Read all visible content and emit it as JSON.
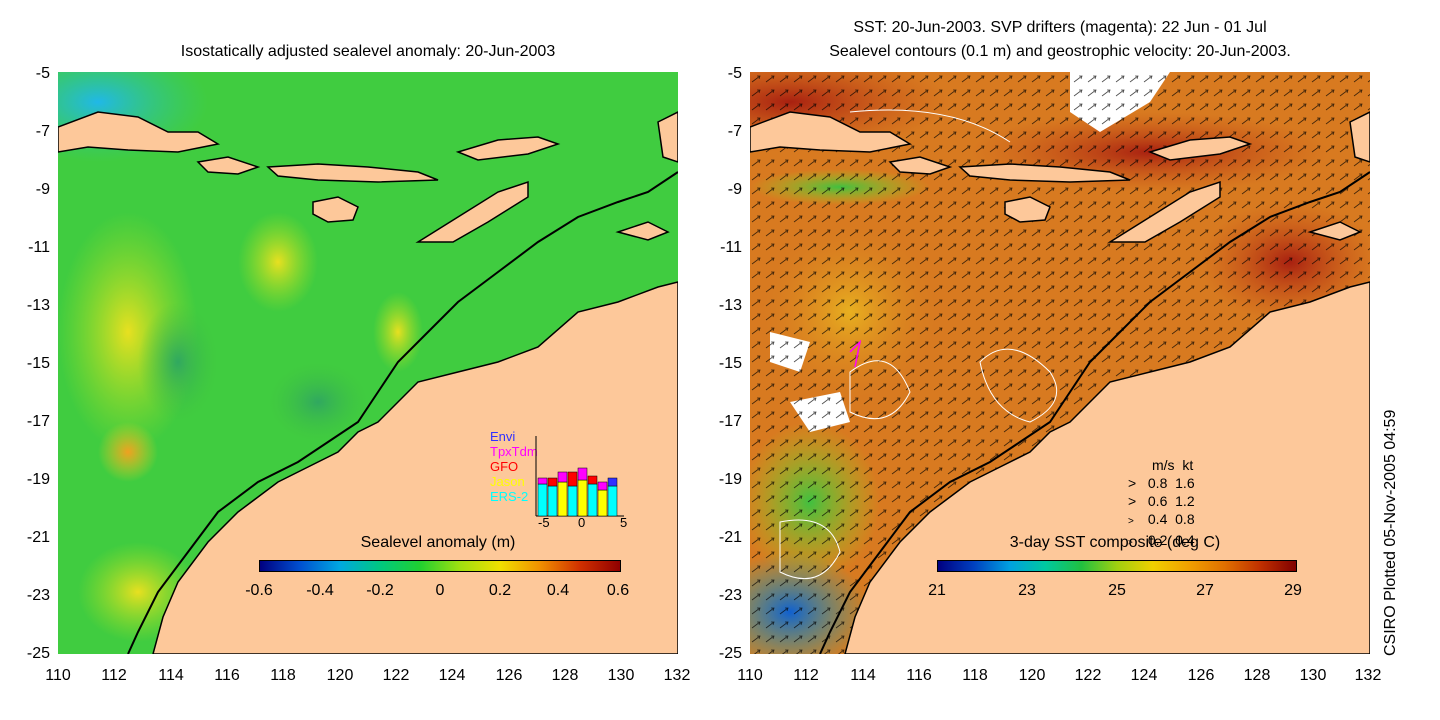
{
  "left_panel": {
    "title": "Isostatically adjusted sealevel anomaly: 20-Jun-2003",
    "colorbar_title": "Sealevel anomaly (m)",
    "colorbar_ticks": [
      "-0.6",
      "-0.4",
      "-0.2",
      "0",
      "0.2",
      "0.4",
      "0.6"
    ],
    "colorbar_colors": [
      "#000080",
      "#0050d0",
      "#00a8e0",
      "#00c880",
      "#20d030",
      "#a0e010",
      "#f0e000",
      "#f09000",
      "#d03000",
      "#900000"
    ],
    "satellite_legend": [
      {
        "label": "Envi",
        "color": "#3030ff"
      },
      {
        "label": "TpxTdm",
        "color": "#ff00ff"
      },
      {
        "label": "GFO",
        "color": "#ff0000"
      },
      {
        "label": "Jason",
        "color": "#ffff00"
      },
      {
        "label": "ERS-2",
        "color": "#00ffff"
      }
    ],
    "mini_axis_ticks": [
      "-5",
      "0",
      "5"
    ]
  },
  "right_panel": {
    "title_line1": "SST: 20-Jun-2003. SVP drifters (magenta): 22 Jun - 01 Jul",
    "title_line2": "Sealevel contours (0.1 m) and geostrophic velocity: 20-Jun-2003.",
    "colorbar_title": "3-day SST composite (deg C)",
    "colorbar_ticks": [
      "21",
      "23",
      "25",
      "27",
      "29"
    ],
    "colorbar_colors": [
      "#000080",
      "#0040c0",
      "#00a0e0",
      "#00c8a0",
      "#20c040",
      "#a0d010",
      "#f0d000",
      "#f0a000",
      "#e07000",
      "#c03000",
      "#800000"
    ],
    "velocity_legend": {
      "header_ms": "m/s",
      "header_kt": "kt",
      "rows": [
        {
          "ms": "0.8",
          "kt": "1.6"
        },
        {
          "ms": "0.6",
          "kt": "1.2"
        },
        {
          "ms": "0.4",
          "kt": "0.8"
        },
        {
          "ms": "0.2",
          "kt": "0.4"
        }
      ]
    }
  },
  "axes": {
    "y_ticks": [
      "-5",
      "-7",
      "-9",
      "-11",
      "-13",
      "-15",
      "-17",
      "-19",
      "-21",
      "-23",
      "-25"
    ],
    "x_ticks": [
      "110",
      "112",
      "114",
      "116",
      "118",
      "120",
      "122",
      "124",
      "126",
      "128",
      "130",
      "132"
    ]
  },
  "credit": "CSIRO Plotted 05-Nov-2005 04:59",
  "colors": {
    "land": "#fdc89a",
    "sea_green": "#40d040",
    "sst_orange": "#d88020",
    "sst_red": "#b03010"
  }
}
